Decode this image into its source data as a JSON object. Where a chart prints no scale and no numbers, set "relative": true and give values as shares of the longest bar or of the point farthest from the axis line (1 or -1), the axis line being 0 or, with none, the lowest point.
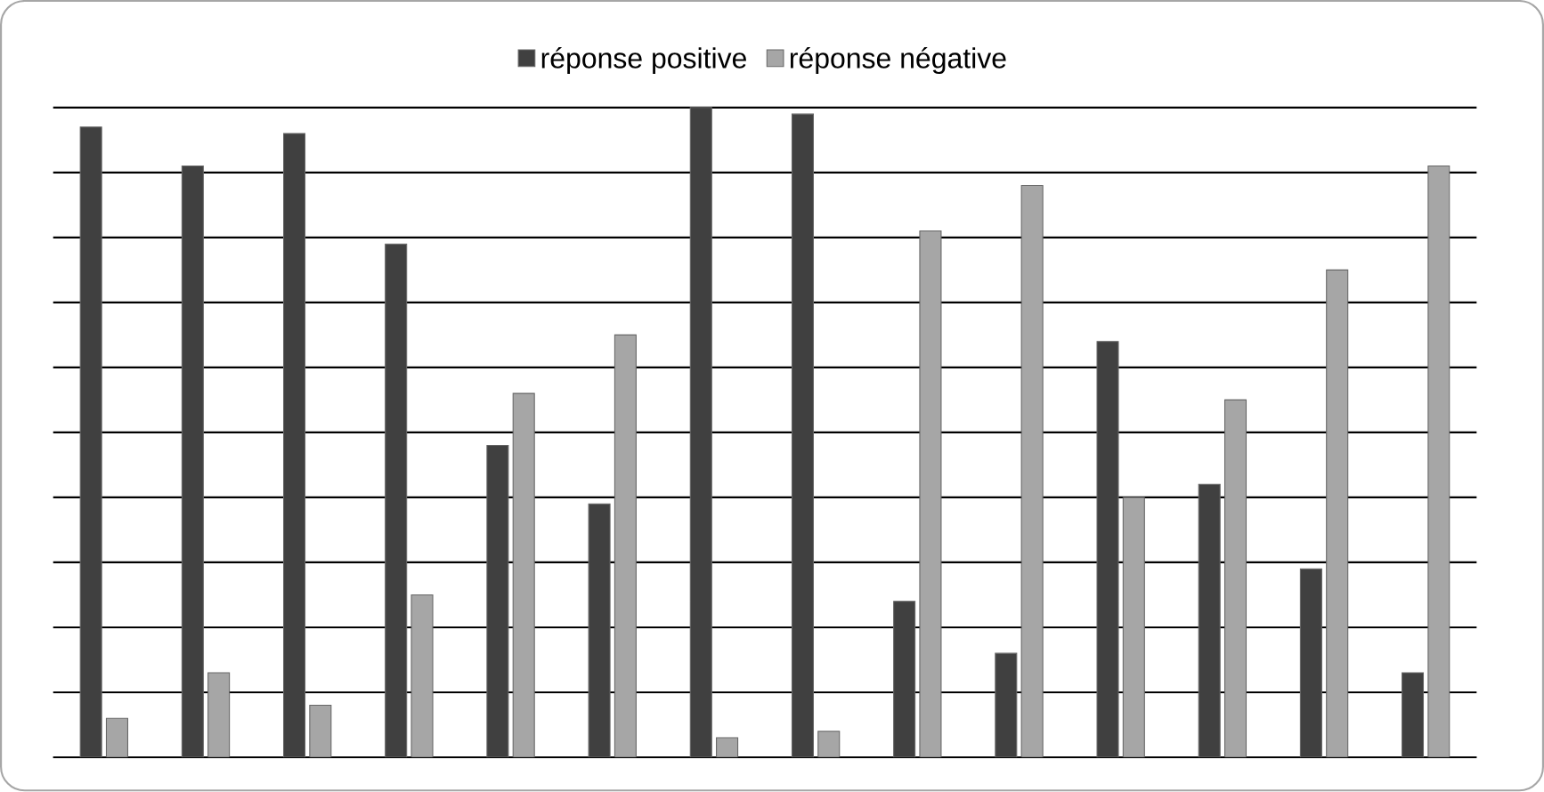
{
  "chart_data": {
    "type": "bar",
    "relative": true,
    "categories": [
      null,
      null,
      null,
      null,
      null,
      null,
      null,
      null,
      null,
      null,
      null,
      null,
      null,
      null
    ],
    "series": [
      {
        "name": "réponse positive",
        "color": "#404040",
        "values": [
          0.97,
          0.91,
          0.96,
          0.79,
          0.48,
          0.39,
          1,
          0.99,
          0.24,
          0.16,
          0.64,
          0.42,
          0.29,
          0.13
        ]
      },
      {
        "name": "réponse négative",
        "color": "#a6a6a6",
        "values": [
          0.06,
          0.13,
          0.08,
          0.25,
          0.56,
          0.65,
          0.03,
          0.04,
          0.81,
          0.88,
          0.4,
          0.55,
          0.75,
          0.91
        ]
      }
    ],
    "grid": "y",
    "legend": "top"
  }
}
